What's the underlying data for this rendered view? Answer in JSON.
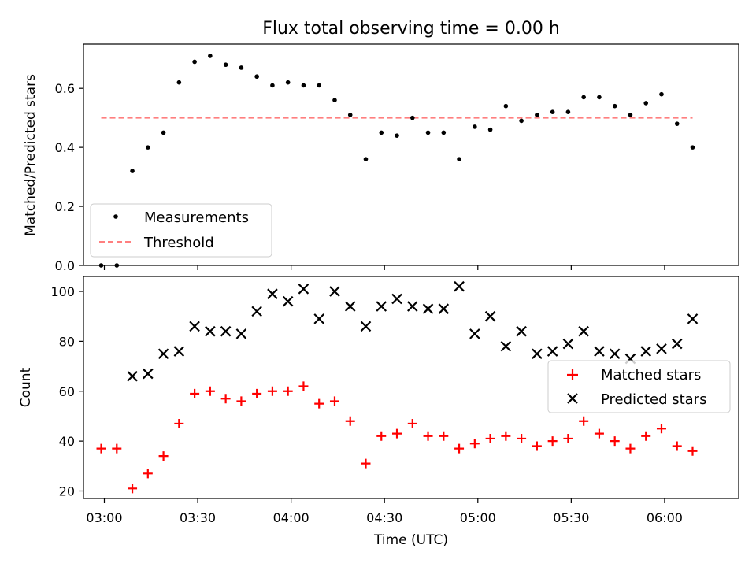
{
  "figure": {
    "title": "Flux total observing time = 0.00 h",
    "xlabel": "Time (UTC)",
    "xticks": [
      "03:00",
      "03:30",
      "04:00",
      "04:30",
      "05:00",
      "05:30",
      "06:00"
    ],
    "xtick_minutes": [
      180,
      210,
      240,
      270,
      300,
      330,
      360
    ],
    "xlim_minutes": [
      173.3,
      383.8
    ]
  },
  "chart_data": [
    {
      "type": "scatter",
      "ylabel": "Matched/Predicted stars",
      "ylim": [
        0,
        0.75
      ],
      "yticks": [
        0.0,
        0.2,
        0.4,
        0.6
      ],
      "ytick_labels": [
        "0.0",
        "0.2",
        "0.4",
        "0.6"
      ],
      "threshold": {
        "name": "Threshold",
        "value": 0.5,
        "x_start": "02:59",
        "x_end": "06:09",
        "color": "#ff7f7f"
      },
      "legend_position": "lower-left",
      "series": [
        {
          "name": "Measurements",
          "color": "#000000",
          "x": [
            "02:59",
            "03:04",
            "03:09",
            "03:14",
            "03:19",
            "03:24",
            "03:29",
            "03:34",
            "03:39",
            "03:44",
            "03:49",
            "03:54",
            "03:59",
            "04:04",
            "04:09",
            "04:14",
            "04:19",
            "04:24",
            "04:29",
            "04:34",
            "04:39",
            "04:44",
            "04:49",
            "04:54",
            "04:59",
            "05:04",
            "05:09",
            "05:14",
            "05:19",
            "05:24",
            "05:29",
            "05:34",
            "05:39",
            "05:44",
            "05:49",
            "05:54",
            "05:59",
            "06:04",
            "06:09"
          ],
          "y": [
            0.0,
            0.0,
            0.32,
            0.4,
            0.45,
            0.62,
            0.69,
            0.71,
            0.68,
            0.67,
            0.64,
            0.61,
            0.62,
            0.61,
            0.61,
            0.56,
            0.51,
            0.36,
            0.45,
            0.44,
            0.5,
            0.45,
            0.45,
            0.36,
            0.47,
            0.46,
            0.54,
            0.49,
            0.51,
            0.52,
            0.52,
            0.57,
            0.57,
            0.54,
            0.51,
            0.55,
            0.58,
            0.48,
            0.4
          ]
        }
      ]
    },
    {
      "type": "scatter",
      "ylabel": "Count",
      "ylim": [
        17,
        106
      ],
      "yticks": [
        20,
        40,
        60,
        80,
        100
      ],
      "ytick_labels": [
        "20",
        "40",
        "60",
        "80",
        "100"
      ],
      "legend_position": "center-right",
      "series": [
        {
          "name": "Matched stars",
          "marker": "plus",
          "color": "#ff0000",
          "x": [
            "02:59",
            "03:04",
            "03:09",
            "03:14",
            "03:19",
            "03:24",
            "03:29",
            "03:34",
            "03:39",
            "03:44",
            "03:49",
            "03:54",
            "03:59",
            "04:04",
            "04:09",
            "04:14",
            "04:19",
            "04:24",
            "04:29",
            "04:34",
            "04:39",
            "04:44",
            "04:49",
            "04:54",
            "04:59",
            "05:04",
            "05:09",
            "05:14",
            "05:19",
            "05:24",
            "05:29",
            "05:34",
            "05:39",
            "05:44",
            "05:49",
            "05:54",
            "05:59",
            "06:04",
            "06:09"
          ],
          "y": [
            37,
            37,
            21,
            27,
            34,
            47,
            59,
            60,
            57,
            56,
            59,
            60,
            60,
            62,
            55,
            56,
            48,
            31,
            42,
            43,
            47,
            42,
            42,
            37,
            39,
            41,
            42,
            41,
            38,
            40,
            41,
            48,
            43,
            40,
            37,
            42,
            45,
            38,
            36
          ]
        },
        {
          "name": "Predicted stars",
          "marker": "x",
          "color": "#000000",
          "x": [
            "03:09",
            "03:14",
            "03:19",
            "03:24",
            "03:29",
            "03:34",
            "03:39",
            "03:44",
            "03:49",
            "03:54",
            "03:59",
            "04:04",
            "04:09",
            "04:14",
            "04:19",
            "04:24",
            "04:29",
            "04:34",
            "04:39",
            "04:44",
            "04:49",
            "04:54",
            "04:59",
            "05:04",
            "05:09",
            "05:14",
            "05:19",
            "05:24",
            "05:29",
            "05:34",
            "05:39",
            "05:44",
            "05:49",
            "05:54",
            "05:59",
            "06:04",
            "06:09"
          ],
          "y": [
            66,
            67,
            75,
            76,
            86,
            84,
            84,
            83,
            92,
            99,
            96,
            101,
            89,
            100,
            94,
            86,
            94,
            97,
            94,
            93,
            93,
            102,
            83,
            90,
            78,
            84,
            75,
            76,
            79,
            84,
            76,
            75,
            73,
            76,
            77,
            79,
            89
          ]
        }
      ]
    }
  ]
}
